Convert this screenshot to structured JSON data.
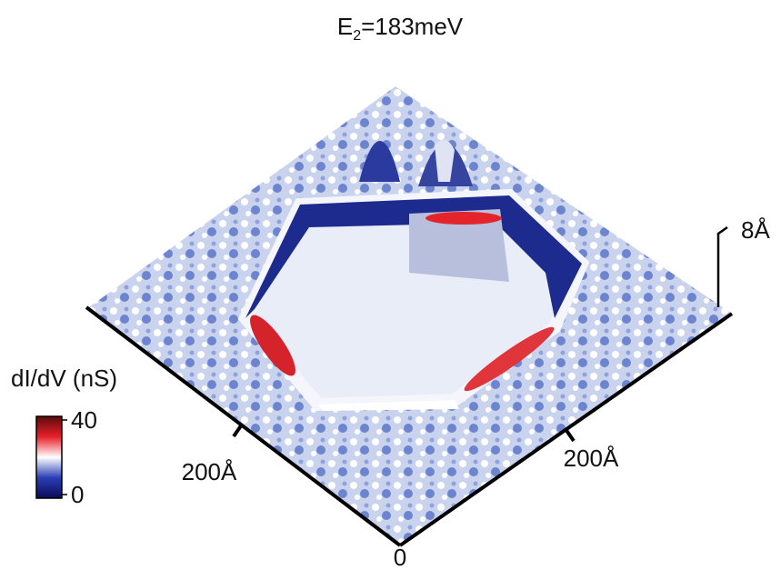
{
  "title": {
    "main": "E",
    "sub": "2",
    "rest": "=183meV"
  },
  "axes": {
    "left_tick": "200Å",
    "right_tick": "200Å",
    "origin": "0",
    "height_scale": "8Å"
  },
  "colorbar": {
    "label": "dI/dV (nS)",
    "range": [
      0,
      40
    ],
    "ticks": [
      0,
      40
    ]
  }
}
